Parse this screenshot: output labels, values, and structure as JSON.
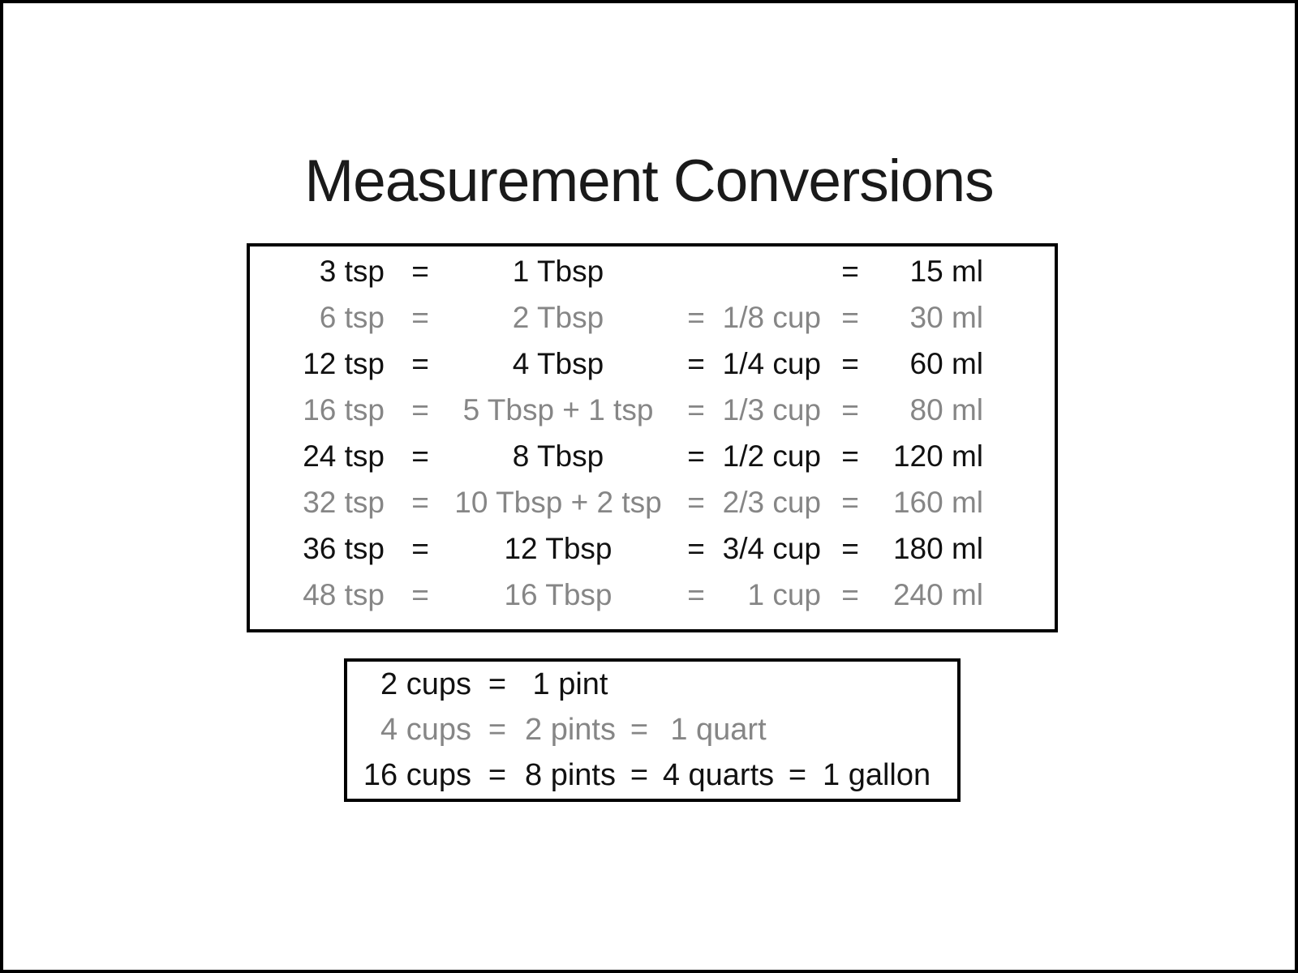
{
  "title": "Measurement Conversions",
  "colors": {
    "dark_text": "#111111",
    "light_text": "#868686",
    "border": "#000000",
    "background": "#ffffff"
  },
  "table1": {
    "name": "tsp-tbsp-cup-ml-conversions",
    "columns": [
      "tsp-amount",
      "equals-sign",
      "tbsp-amount",
      "equals-sign",
      "cup-amount",
      "equals-sign",
      "ml-amount"
    ],
    "rows": [
      {
        "shade": "dark",
        "cells": [
          "3 tsp",
          "=",
          "1 Tbsp",
          "",
          "",
          "=",
          "15 ml"
        ]
      },
      {
        "shade": "light",
        "cells": [
          "6 tsp",
          "=",
          "2 Tbsp",
          "=",
          "1/8 cup",
          "=",
          "30 ml"
        ]
      },
      {
        "shade": "dark",
        "cells": [
          "12 tsp",
          "=",
          "4 Tbsp",
          "=",
          "1/4 cup",
          "=",
          "60 ml"
        ]
      },
      {
        "shade": "light",
        "cells": [
          "16 tsp",
          "=",
          "5 Tbsp + 1 tsp",
          "=",
          "1/3 cup",
          "=",
          "80 ml"
        ]
      },
      {
        "shade": "dark",
        "cells": [
          "24 tsp",
          "=",
          "8 Tbsp",
          "=",
          "1/2 cup",
          "=",
          "120 ml"
        ]
      },
      {
        "shade": "light",
        "cells": [
          "32 tsp",
          "=",
          "10 Tbsp + 2 tsp",
          "=",
          "2/3 cup",
          "=",
          "160 ml"
        ]
      },
      {
        "shade": "dark",
        "cells": [
          "36 tsp",
          "=",
          "12 Tbsp",
          "=",
          "3/4 cup",
          "=",
          "180 ml"
        ]
      },
      {
        "shade": "light",
        "cells": [
          "48 tsp",
          "=",
          "16 Tbsp",
          "=",
          "1 cup",
          "=",
          "240 ml"
        ]
      }
    ]
  },
  "table2": {
    "name": "cups-pints-quarts-gallon-conversions",
    "columns": [
      "cups-amount",
      "equals-sign",
      "pints-amount",
      "equals-sign",
      "quarts-amount",
      "equals-sign",
      "gallon-amount"
    ],
    "rows": [
      {
        "shade": "dark",
        "cells": [
          "2 cups",
          "=",
          "1 pint",
          "",
          "",
          "",
          ""
        ]
      },
      {
        "shade": "light",
        "cells": [
          "4 cups",
          "=",
          "2 pints",
          "=",
          "1 quart",
          "",
          ""
        ]
      },
      {
        "shade": "dark",
        "cells": [
          "16 cups",
          "=",
          "8 pints",
          "=",
          "4 quarts",
          "=",
          "1 gallon"
        ]
      }
    ]
  }
}
